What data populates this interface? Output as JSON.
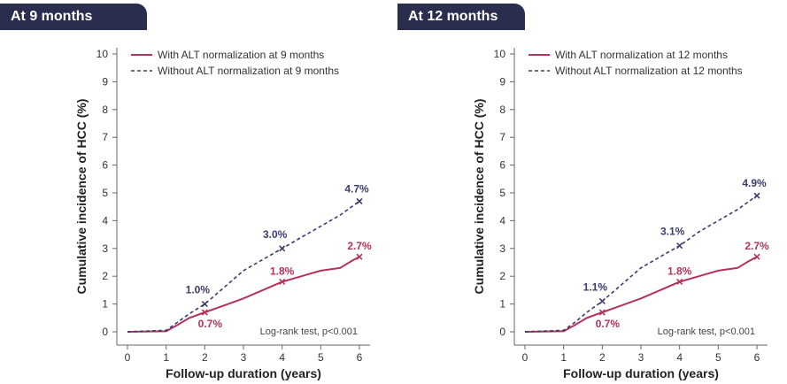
{
  "panels": [
    {
      "tab_label": "At 9 months",
      "chart_data": {
        "type": "line",
        "xlabel": "Follow-up duration (years)",
        "ylabel": "Cumulative incidence of HCC (%)",
        "xlim": [
          0,
          6
        ],
        "ylim": [
          0,
          10
        ],
        "xticks": [
          0,
          1,
          2,
          3,
          4,
          5,
          6
        ],
        "yticks": [
          0,
          1,
          2,
          3,
          4,
          5,
          6,
          7,
          8,
          9,
          10
        ],
        "legend_position": "top-left",
        "annotation": "Log-rank test, p<0.001",
        "series": [
          {
            "name": "With ALT normalization at 9 months",
            "style": "solid",
            "color": "#b5325a",
            "x": [
              0,
              1.0,
              1.3,
              1.6,
              2.0,
              2.5,
              3.0,
              3.5,
              4.0,
              4.5,
              5.0,
              5.5,
              5.8,
              6.0
            ],
            "y": [
              0,
              0.02,
              0.25,
              0.5,
              0.7,
              0.95,
              1.2,
              1.5,
              1.8,
              2.0,
              2.2,
              2.3,
              2.55,
              2.7
            ],
            "markers": [
              {
                "x": 2,
                "y": 0.7,
                "label": "0.7%"
              },
              {
                "x": 4,
                "y": 1.8,
                "label": "1.8%"
              },
              {
                "x": 6,
                "y": 2.7,
                "label": "2.7%"
              }
            ]
          },
          {
            "name": "Without ALT normalization at 9 months",
            "style": "dashed",
            "color": "#3a3d6e",
            "x": [
              0,
              1.0,
              1.3,
              1.6,
              2.0,
              2.5,
              3.0,
              3.5,
              4.0,
              4.5,
              5.0,
              5.5,
              6.0
            ],
            "y": [
              0,
              0.05,
              0.35,
              0.65,
              1.0,
              1.6,
              2.2,
              2.6,
              3.0,
              3.4,
              3.8,
              4.2,
              4.7
            ],
            "markers": [
              {
                "x": 2,
                "y": 1.0,
                "label": "1.0%"
              },
              {
                "x": 4,
                "y": 3.0,
                "label": "3.0%"
              },
              {
                "x": 6,
                "y": 4.7,
                "label": "4.7%"
              }
            ]
          }
        ]
      }
    },
    {
      "tab_label": "At 12 months",
      "chart_data": {
        "type": "line",
        "xlabel": "Follow-up duration (years)",
        "ylabel": "Cumulative incidence of HCC (%)",
        "xlim": [
          0,
          6
        ],
        "ylim": [
          0,
          10
        ],
        "xticks": [
          0,
          1,
          2,
          3,
          4,
          5,
          6
        ],
        "yticks": [
          0,
          1,
          2,
          3,
          4,
          5,
          6,
          7,
          8,
          9,
          10
        ],
        "legend_position": "top-left",
        "annotation": "Log-rank test, p<0.001",
        "series": [
          {
            "name": "With ALT normalization at 12 months",
            "style": "solid",
            "color": "#b5325a",
            "x": [
              0,
              1.0,
              1.3,
              1.6,
              2.0,
              2.5,
              3.0,
              3.5,
              4.0,
              4.5,
              5.0,
              5.5,
              5.8,
              6.0
            ],
            "y": [
              0,
              0.02,
              0.25,
              0.5,
              0.7,
              0.95,
              1.2,
              1.5,
              1.8,
              2.0,
              2.2,
              2.3,
              2.55,
              2.7
            ],
            "markers": [
              {
                "x": 2,
                "y": 0.7,
                "label": "0.7%"
              },
              {
                "x": 4,
                "y": 1.8,
                "label": "1.8%"
              },
              {
                "x": 6,
                "y": 2.7,
                "label": "2.7%"
              }
            ]
          },
          {
            "name": "Without ALT normalization at 12 months",
            "style": "dashed",
            "color": "#3a3d6e",
            "x": [
              0,
              1.0,
              1.3,
              1.6,
              2.0,
              2.5,
              3.0,
              3.5,
              4.0,
              4.5,
              5.0,
              5.5,
              6.0
            ],
            "y": [
              0,
              0.05,
              0.35,
              0.7,
              1.1,
              1.7,
              2.3,
              2.7,
              3.1,
              3.6,
              4.0,
              4.4,
              4.9
            ],
            "markers": [
              {
                "x": 2,
                "y": 1.1,
                "label": "1.1%"
              },
              {
                "x": 4,
                "y": 3.1,
                "label": "3.1%"
              },
              {
                "x": 6,
                "y": 4.9,
                "label": "4.9%"
              }
            ]
          }
        ]
      }
    }
  ]
}
